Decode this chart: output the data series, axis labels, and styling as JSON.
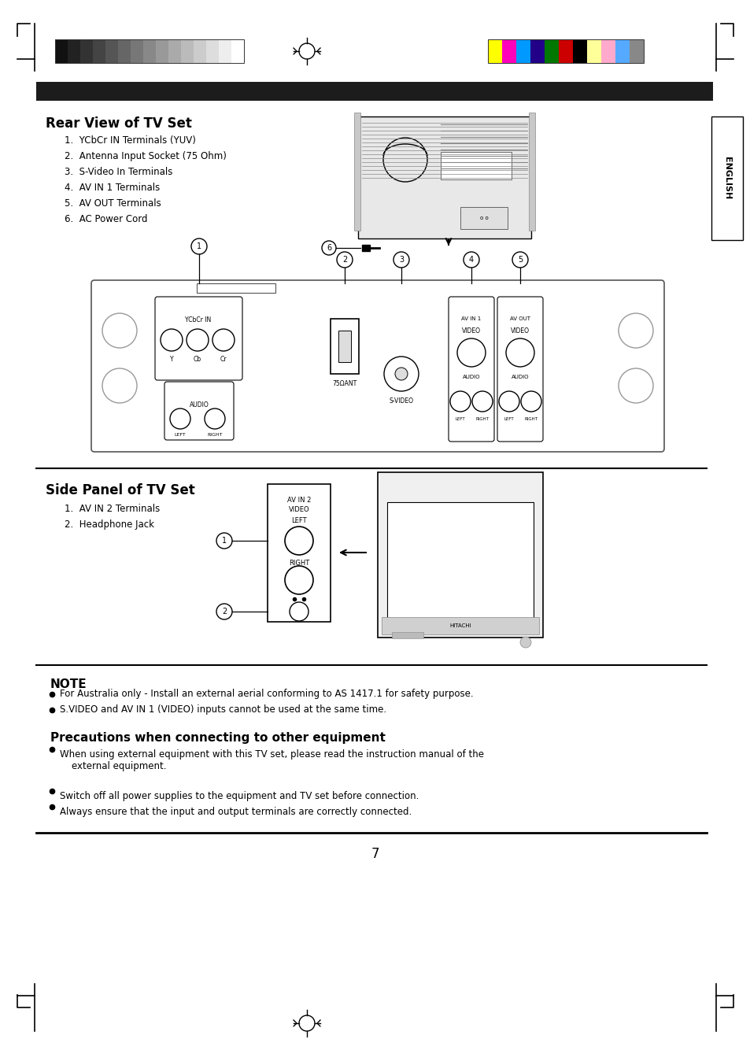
{
  "page_bg": "#ffffff",
  "gray_strip_colors": [
    "#111111",
    "#222222",
    "#333333",
    "#444444",
    "#555555",
    "#666666",
    "#777777",
    "#888888",
    "#999999",
    "#aaaaaa",
    "#bbbbbb",
    "#cccccc",
    "#dddddd",
    "#eeeeee",
    "#ffffff"
  ],
  "color_strip_colors": [
    "#ffff00",
    "#ff00bb",
    "#0099ff",
    "#220088",
    "#007700",
    "#cc0000",
    "#000000",
    "#ffff99",
    "#ffaacc",
    "#55aaff",
    "#888888"
  ],
  "rear_view_title": "Rear View of TV Set",
  "rear_view_items": [
    "1.  YCbCr IN Terminals (YUV)",
    "2.  Antenna Input Socket (75 Ohm)",
    "3.  S-Video In Terminals",
    "4.  AV IN 1 Terminals",
    "5.  AV OUT Terminals",
    "6.  AC Power Cord"
  ],
  "side_panel_title": "Side Panel of TV Set",
  "side_panel_items": [
    "1.  AV IN 2 Terminals",
    "2.  Headphone Jack"
  ],
  "note_title": "NOTE",
  "note_bullets": [
    "For Australia only - Install an external aerial conforming to AS 1417.1 for safety purpose.",
    "S.VIDEO and AV IN 1 (VIDEO) inputs cannot be used at the same time."
  ],
  "precautions_title": "Precautions when connecting to other equipment",
  "precautions_bullets": [
    "When using external equipment with this TV set, please read the instruction manual of the\n    external equipment.",
    "Switch off all power supplies to the equipment and TV set before connection.",
    "Always ensure that the input and output terminals are correctly connected."
  ],
  "page_number": "7",
  "english_label": "ENGLISH"
}
